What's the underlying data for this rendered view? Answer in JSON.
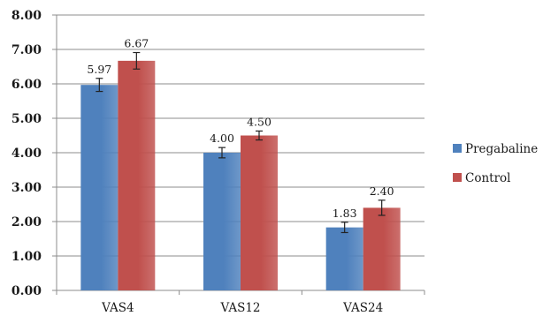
{
  "chart_data": {
    "type": "bar",
    "categories": [
      "VAS4",
      "VAS12",
      "VAS24"
    ],
    "series": [
      {
        "name": "Pregabaline",
        "values": [
          5.97,
          4.0,
          1.83
        ],
        "value_labels": [
          "5.97",
          "4.00",
          "1.83"
        ],
        "errors": [
          0.19,
          0.15,
          0.15
        ],
        "color": "#4f81bd"
      },
      {
        "name": "Control",
        "values": [
          6.67,
          4.5,
          2.4
        ],
        "value_labels": [
          "6.67",
          "4.50",
          "2.40"
        ],
        "errors": [
          0.24,
          0.13,
          0.22
        ],
        "color": "#c0504d"
      }
    ],
    "ylim": [
      0,
      8
    ],
    "y_ticks": [
      0,
      1,
      2,
      3,
      4,
      5,
      6,
      7,
      8
    ],
    "y_tick_labels": [
      "0.00",
      "1.00",
      "2.00",
      "3.00",
      "4.00",
      "5.00",
      "6.00",
      "7.00",
      "8.00"
    ],
    "grid": true,
    "error_bars": true,
    "legend": "right",
    "title": "",
    "xlabel": "",
    "ylabel": ""
  }
}
